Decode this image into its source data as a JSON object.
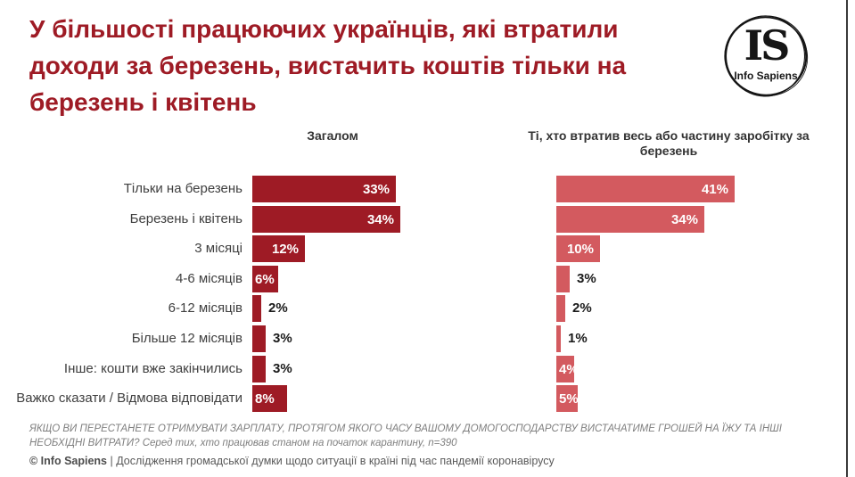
{
  "title": {
    "lines": [
      "У більшості працюючих українців, які втратили",
      "доходи за березень, вистачить коштів тільки на",
      "березень і квітень"
    ],
    "color": "#9e1b25"
  },
  "logo": {
    "monogram": "IS",
    "name": "Info Sapiens"
  },
  "chart_data": {
    "type": "bar",
    "orientation": "horizontal",
    "categories": [
      "Тільки на березень",
      "Березень і квітень",
      "3 місяці",
      "4-6 місяців",
      "6-12 місяців",
      "Більше 12 місяців",
      "Інше: кошти вже закінчились",
      "Важко сказати / Відмова відповідати"
    ],
    "series": [
      {
        "name": "Загалом",
        "values": [
          33,
          34,
          12,
          6,
          2,
          3,
          3,
          8
        ],
        "color": "#9e1b25"
      },
      {
        "name": "Ті, хто втратив весь або частину заробітку за березень",
        "values": [
          41,
          34,
          10,
          3,
          2,
          1,
          4,
          5
        ],
        "color": "#d35a5f"
      }
    ],
    "value_suffix": "%",
    "value_label_inside_color": "#ffffff",
    "value_label_outside_color": "#1a1a1a",
    "xlim": [
      0,
      45
    ],
    "grid": false,
    "legend_position": "column-headers-above"
  },
  "footnote": "ЯКЩО ВИ ПЕРЕСТАНЕТЕ ОТРИМУВАТИ ЗАРПЛАТУ, ПРОТЯГОМ ЯКОГО ЧАСУ ВАШОМУ ДОМОГОСПОДАРСТВУ ВИСТАЧАТИМЕ ГРОШЕЙ НА ЇЖУ ТА ІНШІ НЕОБХІДНІ ВИТРАТИ? Серед тих, хто працював станом на початок карантину, n=390",
  "footer": {
    "source": "© Info Sapiens",
    "description": " | Дослідження громадської думки щодо ситуації в країні під час пандемії коронавірусу"
  },
  "colors": {
    "accent_dark_red": "#9e1b25",
    "accent_salmon": "#d35a5f",
    "edge_line": "#3a3a3a",
    "label_gray": "#3f3f3f",
    "footnote_gray": "#7f7f7f"
  }
}
